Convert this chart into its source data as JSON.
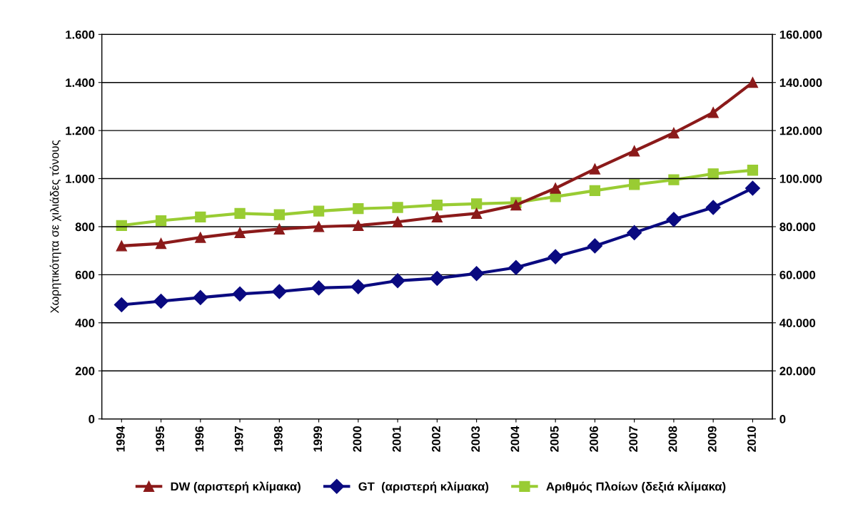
{
  "chart_data": {
    "type": "line",
    "ylabel": "Χωρητικότητα σε χιλιάδες τόνους",
    "categories": [
      "1994",
      "1995",
      "1996",
      "1997",
      "1998",
      "1999",
      "2000",
      "2001",
      "2002",
      "2003",
      "2004",
      "2005",
      "2006",
      "2007",
      "2008",
      "2009",
      "2010"
    ],
    "series": [
      {
        "name": "DW (αριστερή κλίμακα)",
        "color": "#8b1a1a",
        "marker": "triangle",
        "values": [
          720,
          730,
          755,
          775,
          790,
          800,
          805,
          820,
          840,
          855,
          890,
          960,
          1040,
          1115,
          1190,
          1275,
          1400
        ]
      },
      {
        "name": "GT  (αριστερή κλίμακα)",
        "color": "#0a0a80",
        "marker": "diamond",
        "values": [
          475,
          490,
          505,
          520,
          530,
          545,
          550,
          575,
          585,
          605,
          630,
          675,
          720,
          775,
          830,
          880,
          960
        ]
      },
      {
        "name": "Αριθμός Πλοίων (δεξιά κλίμακα)",
        "color": "#99cc33",
        "marker": "square",
        "axis": "y2",
        "values": [
          80500,
          82500,
          84000,
          85500,
          85000,
          86500,
          87500,
          88000,
          89000,
          89500,
          90000,
          92500,
          95000,
          97500,
          99500,
          102000,
          103500
        ]
      }
    ],
    "ylim": [
      0,
      1600
    ],
    "yticks": [
      0,
      200,
      400,
      600,
      800,
      {
        "value": 1000,
        "label": "1.000"
      },
      {
        "value": 1200,
        "label": "1.200"
      },
      {
        "value": 1400,
        "label": "1.400"
      },
      {
        "value": 1600,
        "label": "1.600"
      }
    ],
    "y2lim": [
      0,
      160000
    ],
    "y2ticks": [
      0,
      {
        "value": 20000,
        "label": "20.000"
      },
      {
        "value": 40000,
        "label": "40.000"
      },
      {
        "value": 60000,
        "label": "60.000"
      },
      {
        "value": 80000,
        "label": "80.000"
      },
      {
        "value": 100000,
        "label": "100.000"
      },
      {
        "value": 120000,
        "label": "120.000"
      },
      {
        "value": 140000,
        "label": "140.000"
      },
      {
        "value": 160000,
        "label": "160.000"
      }
    ],
    "grid": "y",
    "legend": "bottom",
    "line_style": "solid"
  }
}
